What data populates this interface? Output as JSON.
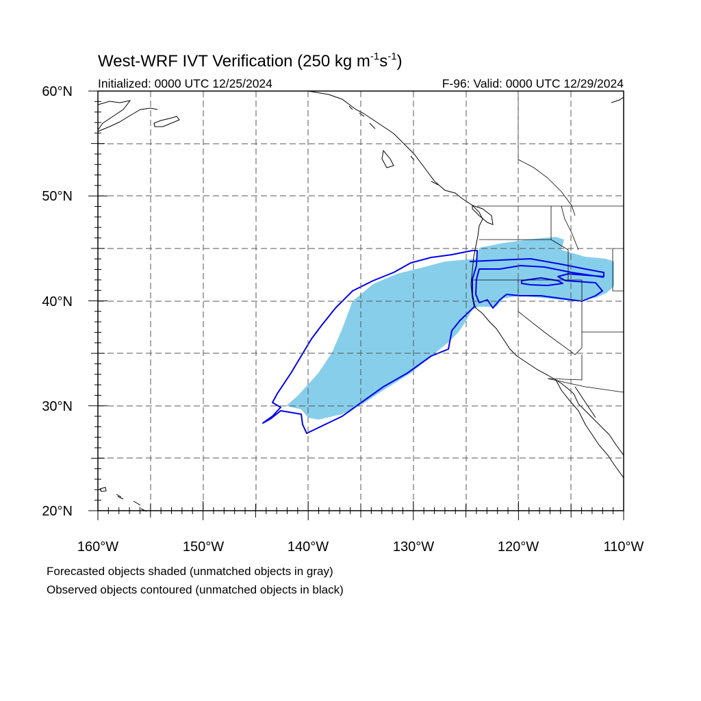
{
  "title": {
    "main": "West-WRF IVT Verification (250 kg m",
    "sup1": "-1",
    "mid": "s",
    "sup2": "-1",
    "end": ")"
  },
  "initialized": "Initialized: 0000 UTC 12/25/2024",
  "valid": "F-96: Valid: 0000 UTC 12/29/2024",
  "lat_labels": [
    "60°N",
    "50°N",
    "40°N",
    "30°N",
    "20°N"
  ],
  "lon_labels": [
    "160°W",
    "150°W",
    "140°W",
    "130°W",
    "120°W",
    "110°W"
  ],
  "notes": [
    "Forecasted objects shaded (unmatched objects in gray)",
    "Observed objects contoured (unmatched objects in black)"
  ],
  "colors": {
    "forecast_fill": "#87ceeb",
    "observed_contour": "#0000ee",
    "grid": "#555555",
    "coast": "#000000"
  },
  "map": {
    "lon_range": [
      -160,
      -110
    ],
    "lat_range": [
      20,
      60
    ],
    "projection": "cylindrical-equidistant",
    "grid_spacing_major": 10,
    "grid_spacing_dashed": 5
  }
}
